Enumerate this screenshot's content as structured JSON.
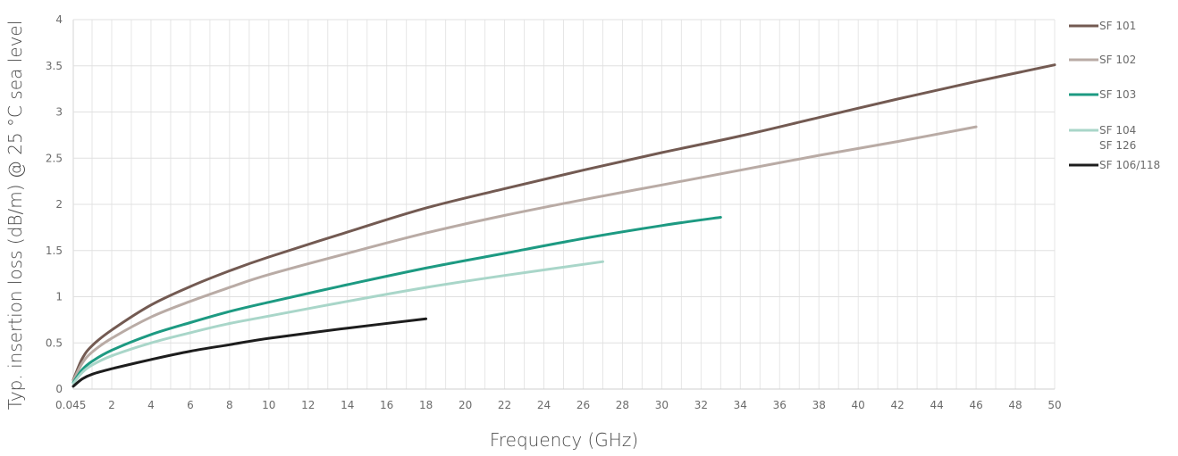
{
  "chart_data": {
    "type": "line",
    "xlabel": "Frequency (GHz)",
    "ylabel": "Typ. insertion loss (dB/m) @ 25 °C sea level",
    "xlim": [
      0.045,
      50
    ],
    "ylim": [
      0,
      4
    ],
    "grid": true,
    "legend_position": "right",
    "x_ticks": [
      {
        "value": 0.045,
        "label": "0.045"
      },
      {
        "value": 2,
        "label": "2"
      },
      {
        "value": 4,
        "label": "4"
      },
      {
        "value": 6,
        "label": "6"
      },
      {
        "value": 8,
        "label": "8"
      },
      {
        "value": 10,
        "label": "10"
      },
      {
        "value": 12,
        "label": "12"
      },
      {
        "value": 14,
        "label": "14"
      },
      {
        "value": 16,
        "label": "16"
      },
      {
        "value": 18,
        "label": "18"
      },
      {
        "value": 20,
        "label": "20"
      },
      {
        "value": 22,
        "label": "22"
      },
      {
        "value": 24,
        "label": "24"
      },
      {
        "value": 26,
        "label": "26"
      },
      {
        "value": 28,
        "label": "28"
      },
      {
        "value": 30,
        "label": "30"
      },
      {
        "value": 32,
        "label": "32"
      },
      {
        "value": 34,
        "label": "34"
      },
      {
        "value": 36,
        "label": "36"
      },
      {
        "value": 38,
        "label": "38"
      },
      {
        "value": 40,
        "label": "40"
      },
      {
        "value": 42,
        "label": "42"
      },
      {
        "value": 44,
        "label": "44"
      },
      {
        "value": 46,
        "label": "46"
      },
      {
        "value": 48,
        "label": "48"
      },
      {
        "value": 50,
        "label": "50"
      }
    ],
    "y_ticks": [
      {
        "value": 0,
        "label": "0"
      },
      {
        "value": 0.5,
        "label": "0.5"
      },
      {
        "value": 1,
        "label": "1"
      },
      {
        "value": 1.5,
        "label": "1.5"
      },
      {
        "value": 2,
        "label": "2"
      },
      {
        "value": 2.5,
        "label": "2.5"
      },
      {
        "value": 3,
        "label": "3"
      },
      {
        "value": 3.5,
        "label": "3.5"
      },
      {
        "value": 4,
        "label": "4"
      }
    ],
    "series": [
      {
        "name": "SF 101",
        "color": "#735a52",
        "x": [
          0.045,
          0.5,
          1,
          2,
          4,
          6,
          8,
          10,
          14,
          18,
          22,
          26,
          30,
          34,
          38,
          42,
          46,
          50
        ],
        "y": [
          0.1,
          0.33,
          0.47,
          0.64,
          0.91,
          1.11,
          1.28,
          1.43,
          1.7,
          1.96,
          2.17,
          2.37,
          2.56,
          2.74,
          2.94,
          3.14,
          3.33,
          3.51
        ]
      },
      {
        "name": "SF 102",
        "color": "#b9aba5",
        "x": [
          0.045,
          0.5,
          1,
          2,
          4,
          6,
          8,
          10,
          14,
          18,
          22,
          26,
          30,
          34,
          38,
          42,
          46
        ],
        "y": [
          0.09,
          0.28,
          0.4,
          0.55,
          0.78,
          0.95,
          1.1,
          1.24,
          1.47,
          1.69,
          1.88,
          2.05,
          2.21,
          2.37,
          2.53,
          2.68,
          2.84
        ]
      },
      {
        "name": "SF 103",
        "color": "#1d9a82",
        "x": [
          0.045,
          0.5,
          1,
          2,
          4,
          6,
          8,
          10,
          14,
          18,
          22,
          26,
          30,
          33
        ],
        "y": [
          0.07,
          0.21,
          0.3,
          0.42,
          0.59,
          0.72,
          0.84,
          0.94,
          1.13,
          1.31,
          1.47,
          1.63,
          1.77,
          1.86
        ]
      },
      {
        "name": "SF 104",
        "name_line2": "SF 126",
        "color": "#a9d6c9",
        "x": [
          0.045,
          0.5,
          1,
          2,
          4,
          6,
          8,
          10,
          14,
          18,
          22,
          27
        ],
        "y": [
          0.06,
          0.18,
          0.26,
          0.36,
          0.5,
          0.61,
          0.71,
          0.79,
          0.95,
          1.1,
          1.23,
          1.38
        ]
      },
      {
        "name": "SF 106/118",
        "color": "#1d1d1d",
        "x": [
          0.045,
          0.5,
          1,
          2,
          4,
          6,
          8,
          10,
          14,
          18
        ],
        "y": [
          0.03,
          0.11,
          0.16,
          0.22,
          0.32,
          0.41,
          0.48,
          0.55,
          0.66,
          0.76
        ]
      }
    ]
  }
}
